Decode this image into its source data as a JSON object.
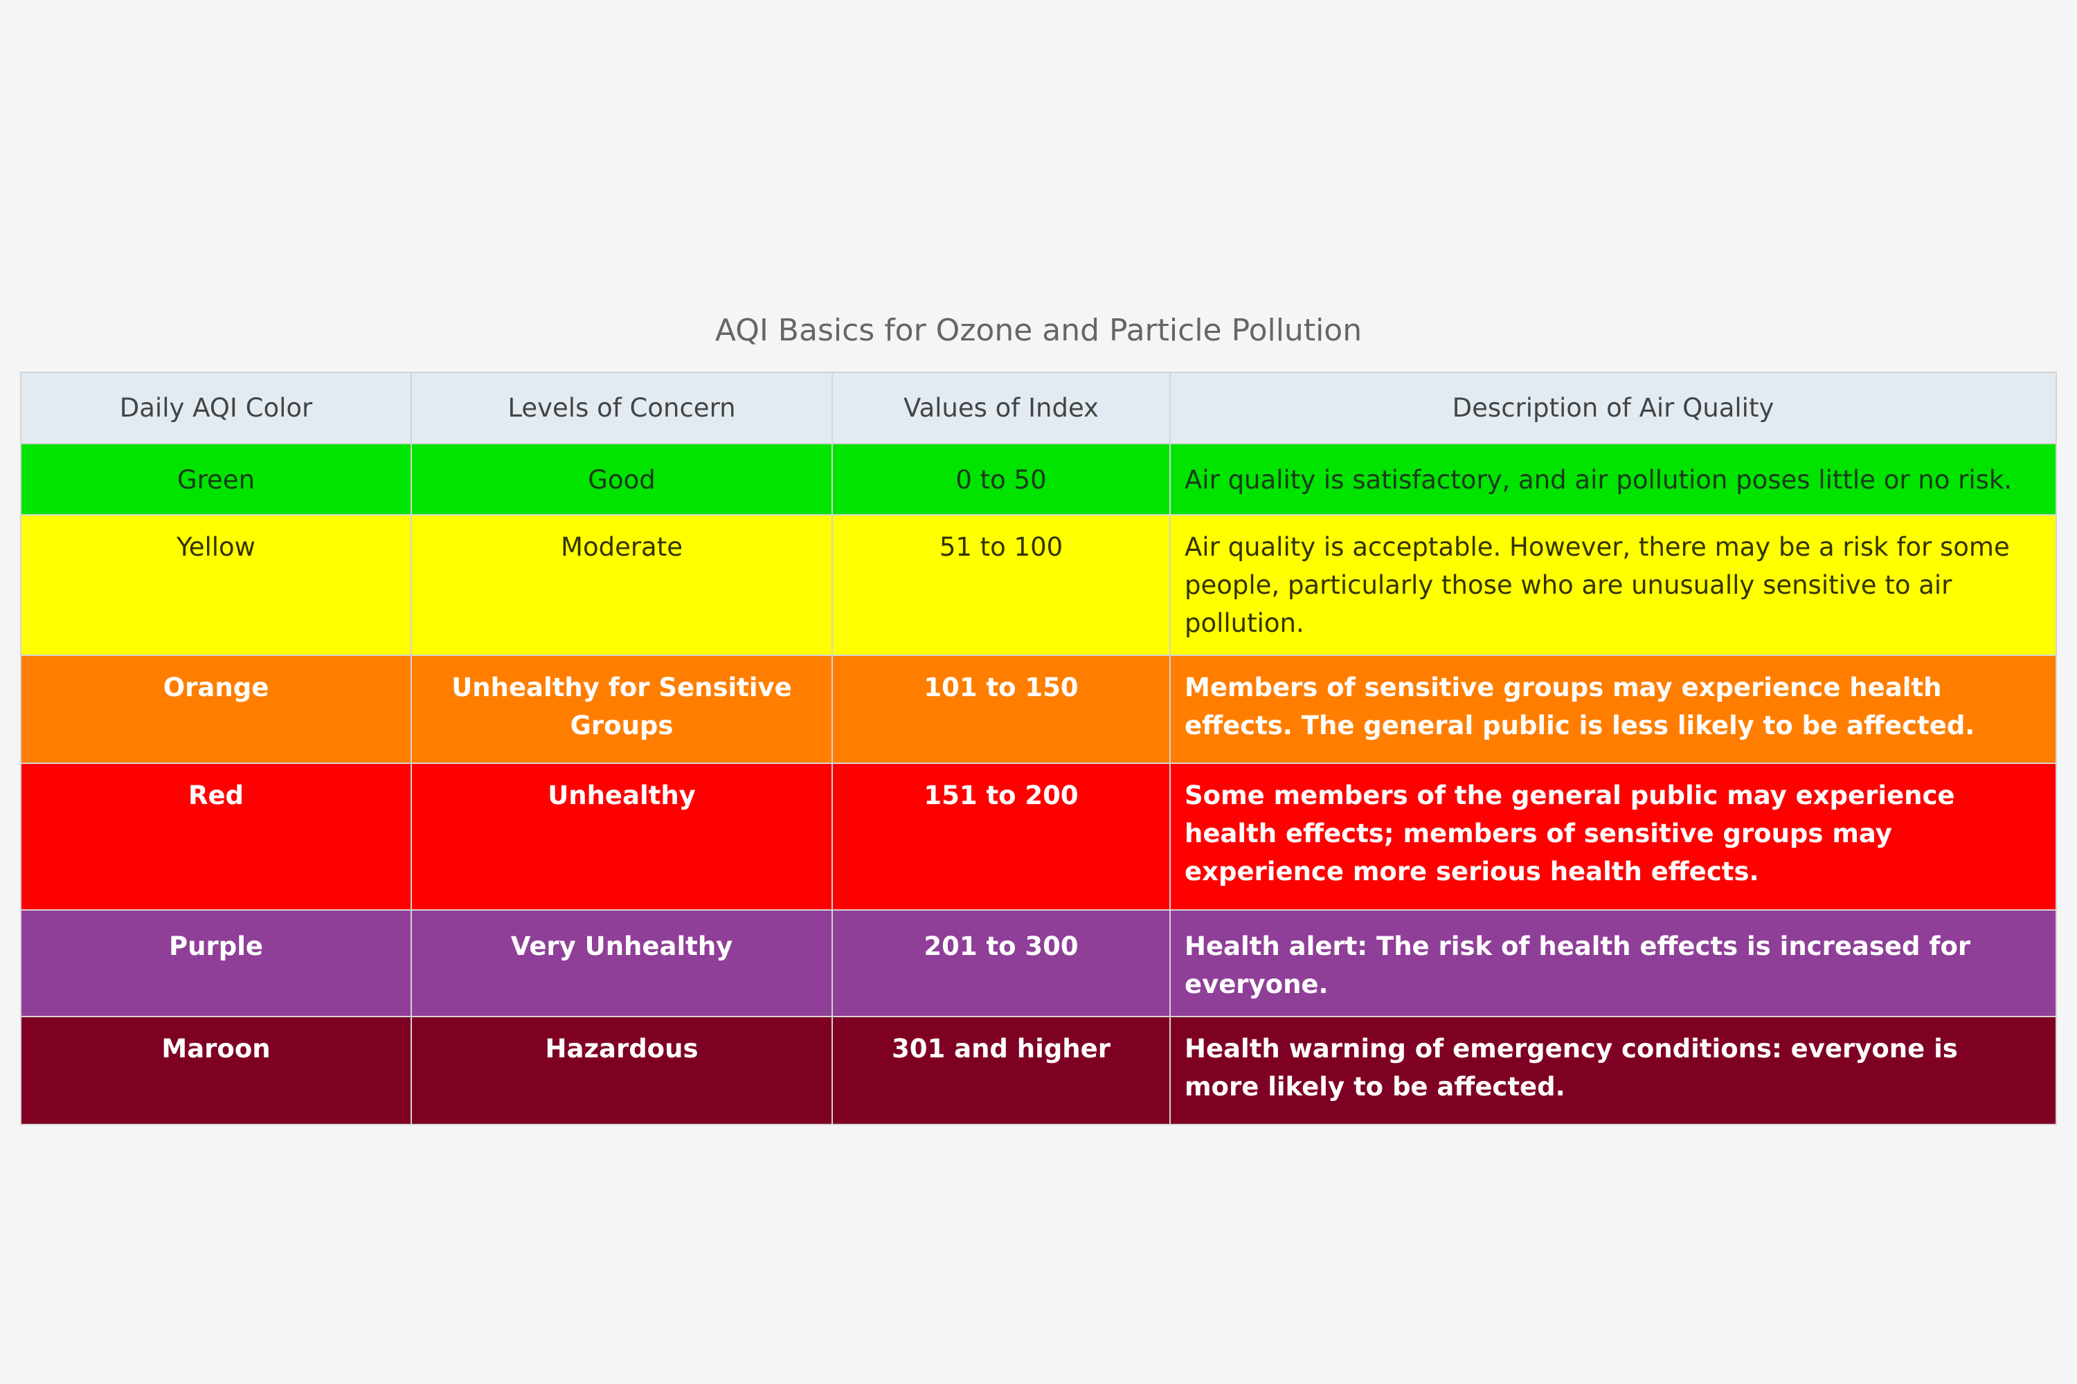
{
  "title": "AQI Basics for Ozone and Particle Pollution",
  "table": {
    "headers": [
      "Daily AQI Color",
      "Levels of Concern",
      "Values of Index",
      "Description of Air Quality"
    ],
    "rows": [
      {
        "color": "Green",
        "level": "Good",
        "values": "0 to 50",
        "description": "Air quality is satisfactory, and air pollution poses little or no risk.",
        "bg": "#00e400"
      },
      {
        "color": "Yellow",
        "level": "Moderate",
        "values": "51 to 100",
        "description": "Air quality is acceptable. However, there may be a risk for some people, particularly those who are unusually sensitive to air pollution.",
        "bg": "#ffff00"
      },
      {
        "color": "Orange",
        "level": "Unhealthy for Sensitive Groups",
        "values": "101 to 150",
        "description": "Members of sensitive groups may experience health effects. The general public is less likely to be affected.",
        "bg": "#ff7e00"
      },
      {
        "color": "Red",
        "level": "Unhealthy",
        "values": "151 to 200",
        "description": "Some members of the general public may experience health effects; members of sensitive groups may experience more serious health effects.",
        "bg": "#ff0000"
      },
      {
        "color": "Purple",
        "level": "Very Unhealthy",
        "values": "201 to 300",
        "description": "Health alert: The risk of health effects is increased for everyone.",
        "bg": "#8f3f97"
      },
      {
        "color": "Maroon",
        "level": "Hazardous",
        "values": "301 and higher",
        "description": "Health warning of emergency conditions: everyone is more likely to be affected.",
        "bg": "#7e0023"
      }
    ]
  }
}
